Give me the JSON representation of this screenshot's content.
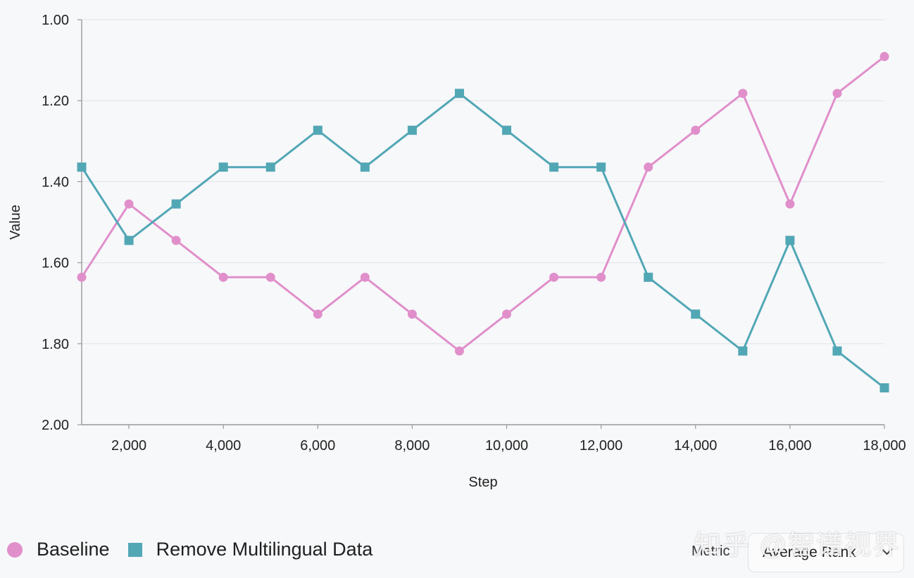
{
  "chart_data": {
    "type": "line",
    "xlabel": "Step",
    "ylabel": "Value",
    "y_inverted": true,
    "ylim": [
      1.0,
      2.0
    ],
    "xlim": [
      1000,
      18000
    ],
    "y_ticks": [
      "1.00",
      "1.20",
      "1.40",
      "1.60",
      "1.80",
      "2.00"
    ],
    "y_tick_values": [
      1.0,
      1.2,
      1.4,
      1.6,
      1.8,
      2.0
    ],
    "x_ticks": [
      "2,000",
      "4,000",
      "6,000",
      "8,000",
      "10,000",
      "12,000",
      "14,000",
      "16,000",
      "18,000"
    ],
    "x_tick_values": [
      2000,
      4000,
      6000,
      8000,
      10000,
      12000,
      14000,
      16000,
      18000
    ],
    "grid": true,
    "x": [
      1000,
      2000,
      3000,
      4000,
      5000,
      6000,
      7000,
      8000,
      9000,
      10000,
      11000,
      12000,
      13000,
      14000,
      15000,
      16000,
      17000,
      18000
    ],
    "series": [
      {
        "name": "Baseline",
        "marker": "circle",
        "color": "#e08fcb",
        "values": [
          1.636,
          1.455,
          1.545,
          1.636,
          1.636,
          1.727,
          1.636,
          1.727,
          1.818,
          1.727,
          1.636,
          1.636,
          1.364,
          1.273,
          1.182,
          1.455,
          1.182,
          1.091
        ]
      },
      {
        "name": "Remove Multilingual Data",
        "marker": "square",
        "color": "#52a7b5",
        "values": [
          1.364,
          1.545,
          1.455,
          1.364,
          1.364,
          1.273,
          1.364,
          1.273,
          1.182,
          1.273,
          1.364,
          1.364,
          1.636,
          1.727,
          1.818,
          1.545,
          1.818,
          1.909
        ]
      }
    ],
    "legend_position": "bottom-left"
  },
  "controls": {
    "metric_label": "Metric",
    "metric_value": "Average Rank"
  },
  "watermark": "知乎 @智谱视界"
}
